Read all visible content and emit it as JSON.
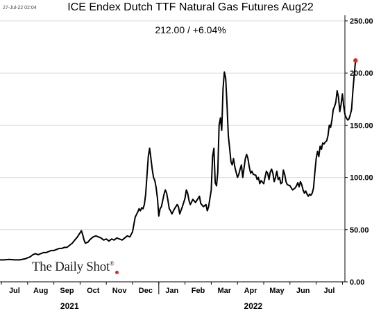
{
  "header": {
    "timestamp": "27-Jul-22 02:04",
    "subtitle": "212.00  /  +6.04%"
  },
  "brand": {
    "name": "The Daily Shot",
    "mark": "®"
  },
  "colors": {
    "line": "#000000",
    "last_point": "#e3261e",
    "axis": "#000000"
  },
  "chart_data": {
    "type": "line",
    "title": "ICE Endex Dutch TTF Natural Gas Futures Aug22",
    "y_axis_side": "right",
    "ylim": [
      0,
      250
    ],
    "yticks": [
      0,
      50,
      100,
      150,
      200,
      250
    ],
    "ytick_labels": [
      "0.00",
      "50.00",
      "100.00",
      "150.00",
      "200.00",
      "250.00"
    ],
    "month_labels": [
      {
        "label": "Jul",
        "x": 0.5
      },
      {
        "label": "Aug",
        "x": 1.5
      },
      {
        "label": "Sep",
        "x": 2.5
      },
      {
        "label": "Oct",
        "x": 3.5
      },
      {
        "label": "Nov",
        "x": 4.5
      },
      {
        "label": "Dec",
        "x": 5.5
      },
      {
        "label": "Jan",
        "x": 6.5
      },
      {
        "label": "Feb",
        "x": 7.5
      },
      {
        "label": "Mar",
        "x": 8.5
      },
      {
        "label": "Apr",
        "x": 9.5
      },
      {
        "label": "May",
        "x": 10.5
      },
      {
        "label": "Jun",
        "x": 11.5
      },
      {
        "label": "Jul",
        "x": 12.5
      }
    ],
    "year_labels": [
      {
        "label": "2021",
        "x": 2.6
      },
      {
        "label": "2022",
        "x": 9.6
      }
    ],
    "year_divider_x": 6,
    "xlim": [
      -0.1,
      13.3
    ],
    "x_unit": "months since Jul 1 2021",
    "series": [
      {
        "points": [
          [
            -0.1,
            21
          ],
          [
            0.1,
            21
          ],
          [
            0.3,
            21.5
          ],
          [
            0.5,
            21
          ],
          [
            0.7,
            21
          ],
          [
            0.9,
            22
          ],
          [
            1.0,
            23
          ],
          [
            1.1,
            24
          ],
          [
            1.2,
            26
          ],
          [
            1.3,
            27
          ],
          [
            1.4,
            26
          ],
          [
            1.5,
            27
          ],
          [
            1.6,
            28
          ],
          [
            1.7,
            28
          ],
          [
            1.8,
            29
          ],
          [
            1.9,
            30
          ],
          [
            2.0,
            30
          ],
          [
            2.1,
            31
          ],
          [
            2.2,
            32
          ],
          [
            2.3,
            32
          ],
          [
            2.4,
            33
          ],
          [
            2.5,
            33
          ],
          [
            2.6,
            35
          ],
          [
            2.7,
            37
          ],
          [
            2.8,
            40
          ],
          [
            2.9,
            43
          ],
          [
            3.0,
            47
          ],
          [
            3.05,
            49
          ],
          [
            3.1,
            45
          ],
          [
            3.15,
            40
          ],
          [
            3.2,
            37
          ],
          [
            3.3,
            38
          ],
          [
            3.4,
            41
          ],
          [
            3.5,
            43
          ],
          [
            3.6,
            44
          ],
          [
            3.7,
            43
          ],
          [
            3.8,
            42
          ],
          [
            3.9,
            40
          ],
          [
            4.0,
            41
          ],
          [
            4.1,
            39
          ],
          [
            4.2,
            41
          ],
          [
            4.3,
            40
          ],
          [
            4.4,
            42
          ],
          [
            4.5,
            41
          ],
          [
            4.6,
            40
          ],
          [
            4.7,
            42
          ],
          [
            4.8,
            44
          ],
          [
            4.9,
            43
          ],
          [
            5.0,
            48
          ],
          [
            5.05,
            55
          ],
          [
            5.1,
            62
          ],
          [
            5.2,
            67
          ],
          [
            5.25,
            70
          ],
          [
            5.3,
            68
          ],
          [
            5.35,
            71
          ],
          [
            5.4,
            70
          ],
          [
            5.45,
            74
          ],
          [
            5.5,
            84
          ],
          [
            5.55,
            102
          ],
          [
            5.6,
            120
          ],
          [
            5.65,
            128
          ],
          [
            5.7,
            118
          ],
          [
            5.75,
            108
          ],
          [
            5.8,
            100
          ],
          [
            5.85,
            97
          ],
          [
            5.9,
            90
          ],
          [
            5.95,
            80
          ],
          [
            6.0,
            63
          ],
          [
            6.05,
            70
          ],
          [
            6.1,
            72
          ],
          [
            6.15,
            78
          ],
          [
            6.2,
            84
          ],
          [
            6.25,
            88
          ],
          [
            6.3,
            85
          ],
          [
            6.35,
            78
          ],
          [
            6.4,
            70
          ],
          [
            6.45,
            68
          ],
          [
            6.5,
            65
          ],
          [
            6.6,
            70
          ],
          [
            6.7,
            74
          ],
          [
            6.75,
            72
          ],
          [
            6.8,
            65
          ],
          [
            6.9,
            72
          ],
          [
            7.0,
            80
          ],
          [
            7.05,
            88
          ],
          [
            7.1,
            85
          ],
          [
            7.15,
            78
          ],
          [
            7.2,
            74
          ],
          [
            7.3,
            79
          ],
          [
            7.4,
            76
          ],
          [
            7.5,
            80
          ],
          [
            7.55,
            82
          ],
          [
            7.6,
            75
          ],
          [
            7.7,
            72
          ],
          [
            7.8,
            74
          ],
          [
            7.85,
            68
          ],
          [
            7.9,
            72
          ],
          [
            7.95,
            80
          ],
          [
            8.0,
            88
          ],
          [
            8.05,
            120
          ],
          [
            8.1,
            128
          ],
          [
            8.15,
            95
          ],
          [
            8.2,
            92
          ],
          [
            8.25,
            105
          ],
          [
            8.3,
            150
          ],
          [
            8.35,
            157
          ],
          [
            8.4,
            145
          ],
          [
            8.45,
            185
          ],
          [
            8.5,
            201
          ],
          [
            8.55,
            195
          ],
          [
            8.6,
            170
          ],
          [
            8.65,
            140
          ],
          [
            8.7,
            128
          ],
          [
            8.75,
            115
          ],
          [
            8.8,
            112
          ],
          [
            8.85,
            118
          ],
          [
            8.9,
            110
          ],
          [
            8.95,
            105
          ],
          [
            9.0,
            100
          ],
          [
            9.05,
            103
          ],
          [
            9.1,
            108
          ],
          [
            9.15,
            112
          ],
          [
            9.2,
            100
          ],
          [
            9.3,
            118
          ],
          [
            9.35,
            122
          ],
          [
            9.4,
            118
          ],
          [
            9.45,
            110
          ],
          [
            9.5,
            104
          ],
          [
            9.55,
            106
          ],
          [
            9.6,
            103
          ],
          [
            9.7,
            102
          ],
          [
            9.75,
            98
          ],
          [
            9.8,
            100
          ],
          [
            9.85,
            94
          ],
          [
            9.9,
            97
          ],
          [
            10.0,
            94
          ],
          [
            10.05,
            100
          ],
          [
            10.1,
            106
          ],
          [
            10.15,
            104
          ],
          [
            10.2,
            98
          ],
          [
            10.25,
            105
          ],
          [
            10.3,
            108
          ],
          [
            10.35,
            104
          ],
          [
            10.4,
            96
          ],
          [
            10.45,
            100
          ],
          [
            10.5,
            106
          ],
          [
            10.55,
            98
          ],
          [
            10.6,
            100
          ],
          [
            10.65,
            94
          ],
          [
            10.7,
            95
          ],
          [
            10.75,
            107
          ],
          [
            10.8,
            103
          ],
          [
            10.85,
            96
          ],
          [
            10.9,
            93
          ],
          [
            11.0,
            92
          ],
          [
            11.1,
            88
          ],
          [
            11.2,
            90
          ],
          [
            11.25,
            92
          ],
          [
            11.3,
            95
          ],
          [
            11.35,
            91
          ],
          [
            11.4,
            96
          ],
          [
            11.45,
            93
          ],
          [
            11.5,
            88
          ],
          [
            11.55,
            85
          ],
          [
            11.6,
            87
          ],
          [
            11.65,
            84
          ],
          [
            11.7,
            82
          ],
          [
            11.75,
            84
          ],
          [
            11.8,
            83
          ],
          [
            11.85,
            85
          ],
          [
            11.9,
            90
          ],
          [
            11.95,
            105
          ],
          [
            12.0,
            118
          ],
          [
            12.05,
            125
          ],
          [
            12.1,
            120
          ],
          [
            12.15,
            130
          ],
          [
            12.2,
            127
          ],
          [
            12.25,
            133
          ],
          [
            12.3,
            132
          ],
          [
            12.35,
            134
          ],
          [
            12.4,
            135
          ],
          [
            12.45,
            140
          ],
          [
            12.5,
            150
          ],
          [
            12.55,
            148
          ],
          [
            12.6,
            155
          ],
          [
            12.65,
            165
          ],
          [
            12.7,
            168
          ],
          [
            12.75,
            172
          ],
          [
            12.8,
            183
          ],
          [
            12.85,
            177
          ],
          [
            12.9,
            163
          ],
          [
            12.95,
            170
          ],
          [
            13.0,
            180
          ],
          [
            13.05,
            168
          ],
          [
            13.1,
            160
          ],
          [
            13.15,
            157
          ],
          [
            13.2,
            155
          ],
          [
            13.25,
            156
          ],
          [
            13.3,
            160
          ],
          [
            13.35,
            165
          ],
          [
            13.4,
            183
          ],
          [
            13.45,
            198
          ],
          [
            13.5,
            212
          ]
        ]
      }
    ],
    "last_value": 212
  }
}
